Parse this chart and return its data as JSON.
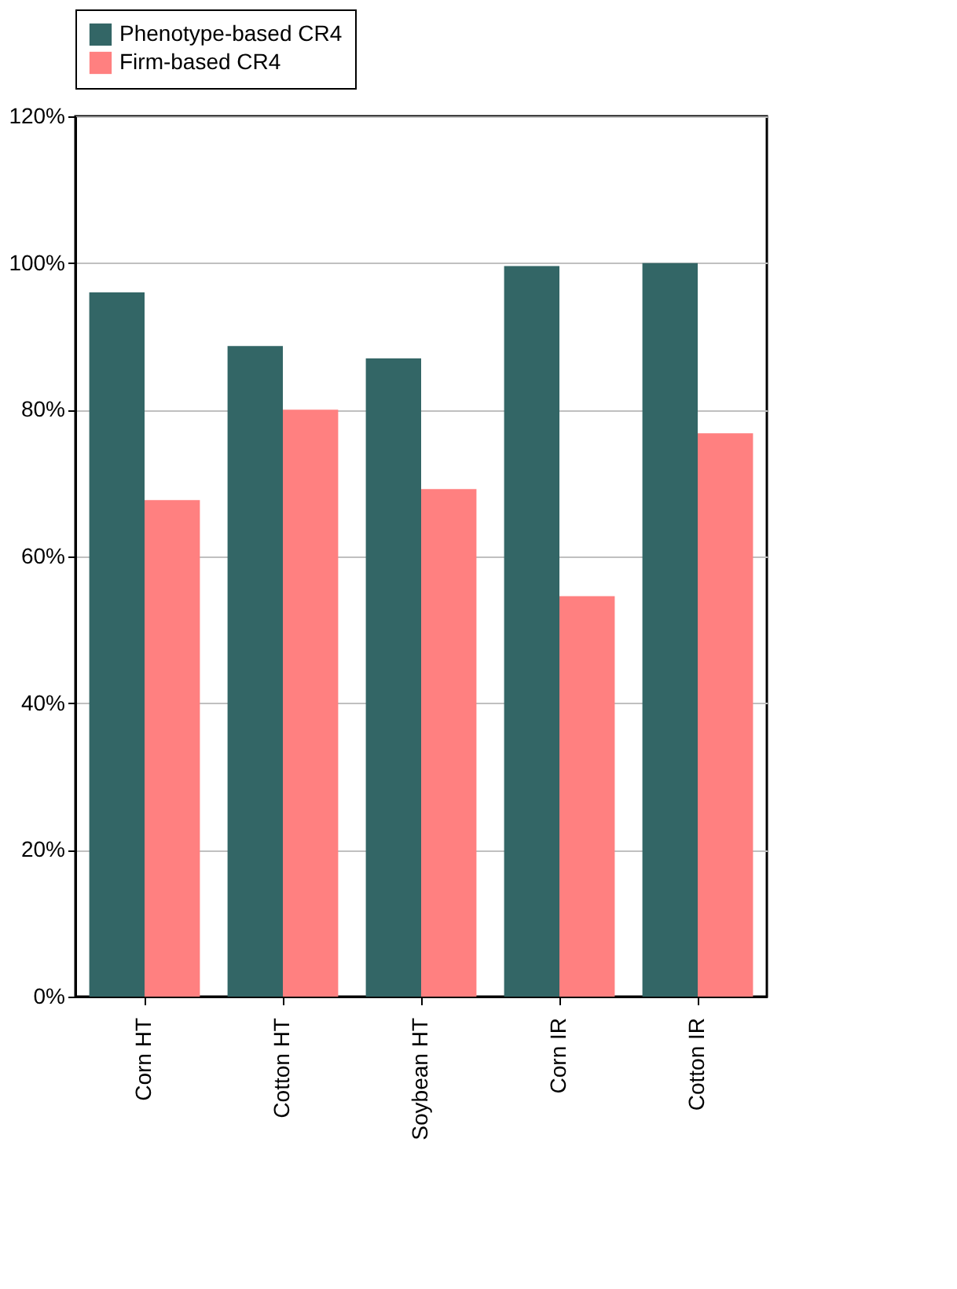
{
  "chart_data": {
    "type": "bar",
    "categories": [
      "Corn HT",
      "Cotton HT",
      "Soybean HT",
      "Corn IR",
      "Cotton IR"
    ],
    "series": [
      {
        "name": "Phenotype-based CR4",
        "color": "#336666",
        "values": [
          96,
          88.7,
          87,
          99.6,
          100
        ]
      },
      {
        "name": "Firm-based CR4",
        "color": "#ff8080",
        "values": [
          67.7,
          80,
          69.2,
          54.6,
          76.8
        ]
      }
    ],
    "ylim": [
      0,
      120
    ],
    "yticks": [
      {
        "value": 0,
        "label": "0%"
      },
      {
        "value": 20,
        "label": "20%"
      },
      {
        "value": 40,
        "label": "40%"
      },
      {
        "value": 60,
        "label": "60%"
      },
      {
        "value": 80,
        "label": "80%"
      },
      {
        "value": 100,
        "label": "100%"
      },
      {
        "value": 120,
        "label": "120%"
      }
    ],
    "grid": "y",
    "legend": "top"
  }
}
